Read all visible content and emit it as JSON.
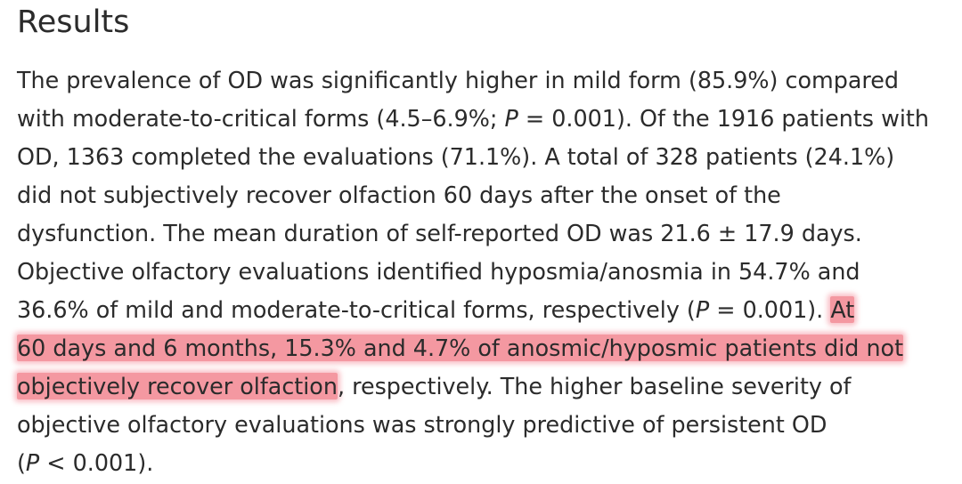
{
  "heading": "Results",
  "paragraph": {
    "l1": "The prevalence of OD was significantly higher in mild form (85.9%) compared",
    "l2a": "with moderate-to-critical forms (4.5–6.9%; ",
    "l2p": "P",
    "l2b": " = 0.001). Of the 1916 patients with",
    "l3": "OD, 1363 completed the evaluations (71.1%). A total of 328 patients (24.1%)",
    "l4": "did not subjectively recover olfaction 60 days after the onset of the",
    "l5": "dysfunction. The mean duration of self-reported OD was 21.6 ± 17.9 days.",
    "l6": "Objective olfactory evaluations identified hyposmia/anosmia in 54.7% and",
    "l7a": "36.6% of mild and moderate-to-critical forms, respectively (",
    "l7p": "P",
    "l7b": " = 0.001). ",
    "l7h": "At",
    "l8h": "60 days and 6 months, 15.3% and 4.7% of anosmic/hyposmic patients did not",
    "l9h": "objectively recover olfaction",
    "l9b": ", respectively. The higher baseline severity of",
    "l10": "objective olfactory evaluations was strongly predictive of persistent OD",
    "l11a": "(",
    "l11p": "P",
    "l11b": " < 0.001)."
  },
  "colors": {
    "text": "#2b2b2b",
    "highlight": "#ee5868",
    "background": "#ffffff"
  }
}
